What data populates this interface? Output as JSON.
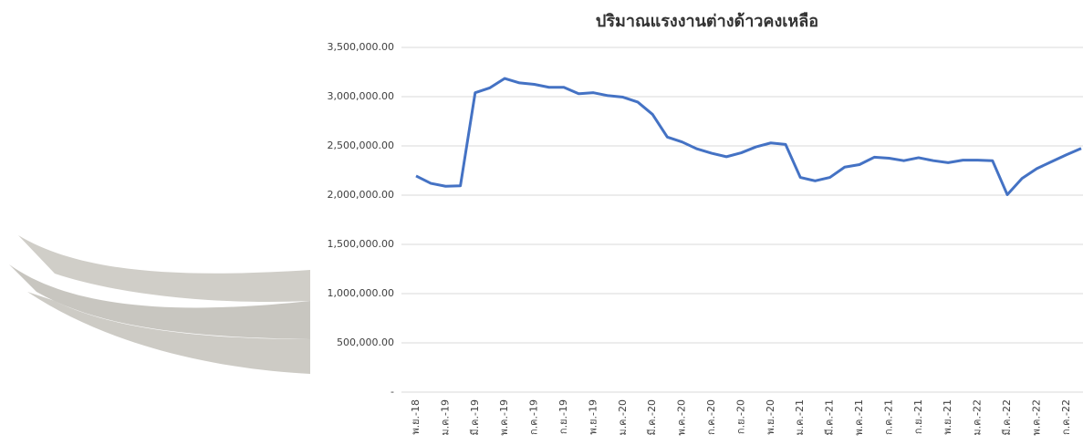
{
  "chart_data": {
    "type": "line",
    "title": "ปริมาณแรงงานต่างด้าวคงเหลือ",
    "categories": [
      "พ.ย.-18",
      null,
      "ม.ค.-19",
      null,
      "มี.ค.-19",
      null,
      "พ.ค.-19",
      null,
      "ก.ค.-19",
      null,
      "ก.ย.-19",
      null,
      "พ.ย.-19",
      null,
      "ม.ค.-20",
      null,
      "มี.ค.-20",
      null,
      "พ.ค.-20",
      null,
      "ก.ค.-20",
      null,
      "ก.ย.-20",
      null,
      "พ.ย.-20",
      null,
      "ม.ค.-21",
      null,
      "มี.ค.-21",
      null,
      "พ.ค.-21",
      null,
      "ก.ค.-21",
      null,
      "ก.ย.-21",
      null,
      "พ.ย.-21",
      null,
      "ม.ค.-22",
      null,
      "มี.ค.-22",
      null,
      "พ.ค.-22",
      null,
      "ก.ค.-22",
      null
    ],
    "values": [
      2195000,
      2120000,
      2090000,
      2095000,
      3040000,
      3090000,
      3185000,
      3140000,
      3125000,
      3095000,
      3095000,
      3030000,
      3040000,
      3010000,
      2995000,
      2945000,
      2820000,
      2590000,
      2540000,
      2470000,
      2425000,
      2390000,
      2430000,
      2490000,
      2530000,
      2515000,
      2180000,
      2145000,
      2180000,
      2285000,
      2310000,
      2385000,
      2375000,
      2350000,
      2380000,
      2350000,
      2330000,
      2355000,
      2355000,
      2350000,
      2005000,
      2170000,
      2270000,
      2340000,
      2410000,
      2475000
    ],
    "color": "#4472c4",
    "ylim": [
      0,
      3500000
    ],
    "yticks": [
      {
        "value": 0,
        "label": "-"
      },
      {
        "value": 500000,
        "label": "500,000.00"
      },
      {
        "value": 1000000,
        "label": "1,000,000.00"
      },
      {
        "value": 1500000,
        "label": "1,500,000.00"
      },
      {
        "value": 2000000,
        "label": "2,000,000.00"
      },
      {
        "value": 2500000,
        "label": "2,500,000.00"
      },
      {
        "value": 3000000,
        "label": "3,000,000.00"
      },
      {
        "value": 3500000,
        "label": "3,500,000.00"
      }
    ],
    "grid": true
  }
}
